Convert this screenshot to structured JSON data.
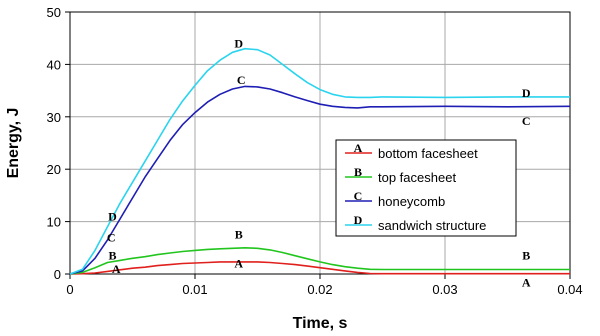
{
  "chart_data": {
    "type": "line",
    "xlabel": "Time, s",
    "ylabel": "Energy, J",
    "xlim": [
      0,
      0.04
    ],
    "ylim": [
      0,
      50
    ],
    "x_ticks": [
      "0",
      "0.01",
      "0.02",
      "0.03",
      "0.04"
    ],
    "y_ticks": [
      "0",
      "10",
      "20",
      "30",
      "40",
      "50"
    ],
    "grid": true,
    "legend_position": "center-right",
    "series": [
      {
        "name": "bottom facesheet",
        "marker": "A",
        "color": "#e0201c",
        "x": [
          0,
          0.001,
          0.002,
          0.003,
          0.004,
          0.005,
          0.006,
          0.007,
          0.008,
          0.009,
          0.01,
          0.011,
          0.012,
          0.013,
          0.014,
          0.015,
          0.016,
          0.017,
          0.018,
          0.019,
          0.02,
          0.021,
          0.022,
          0.023,
          0.024,
          0.025,
          0.03,
          0.035,
          0.04
        ],
        "y": [
          0,
          0.05,
          0.2,
          0.5,
          0.8,
          1.1,
          1.3,
          1.6,
          1.8,
          2.0,
          2.1,
          2.2,
          2.3,
          2.3,
          2.3,
          2.3,
          2.2,
          2.0,
          1.8,
          1.5,
          1.2,
          0.9,
          0.6,
          0.3,
          0.1,
          0.05,
          0.05,
          0.05,
          0.05
        ],
        "marker_points": [
          [
            0.0037,
            1.0
          ],
          [
            0.0135,
            2.0
          ],
          [
            0.0365,
            -1.6
          ]
        ]
      },
      {
        "name": "top facesheet",
        "marker": "B",
        "color": "#22c51e",
        "x": [
          0,
          0.001,
          0.002,
          0.003,
          0.004,
          0.005,
          0.006,
          0.007,
          0.008,
          0.009,
          0.01,
          0.011,
          0.012,
          0.013,
          0.014,
          0.015,
          0.016,
          0.017,
          0.018,
          0.019,
          0.02,
          0.021,
          0.022,
          0.023,
          0.024,
          0.025,
          0.03,
          0.035,
          0.04
        ],
        "y": [
          0,
          0.3,
          1.2,
          2.2,
          2.6,
          3.0,
          3.3,
          3.7,
          4.0,
          4.3,
          4.5,
          4.7,
          4.8,
          4.9,
          5.0,
          4.9,
          4.6,
          4.1,
          3.5,
          2.9,
          2.3,
          1.8,
          1.4,
          1.1,
          0.9,
          0.85,
          0.85,
          0.85,
          0.85
        ],
        "marker_points": [
          [
            0.0034,
            3.5
          ],
          [
            0.0135,
            7.5
          ],
          [
            0.0365,
            3.5
          ]
        ]
      },
      {
        "name": "honeycomb",
        "marker": "C",
        "color": "#1e1eb4",
        "x": [
          0,
          0.001,
          0.002,
          0.003,
          0.004,
          0.005,
          0.006,
          0.007,
          0.008,
          0.009,
          0.01,
          0.011,
          0.012,
          0.013,
          0.014,
          0.015,
          0.016,
          0.017,
          0.018,
          0.019,
          0.02,
          0.021,
          0.022,
          0.023,
          0.024,
          0.025,
          0.03,
          0.035,
          0.04
        ],
        "y": [
          0,
          0.6,
          3.0,
          6.5,
          10.5,
          14.5,
          18.5,
          22.0,
          25.5,
          28.5,
          30.8,
          32.8,
          34.3,
          35.3,
          35.8,
          35.7,
          35.3,
          34.6,
          33.8,
          33.1,
          32.4,
          32.0,
          31.8,
          31.7,
          31.9,
          31.9,
          32.0,
          31.9,
          32.0
        ],
        "marker_points": [
          [
            0.0033,
            7.0
          ],
          [
            0.0137,
            37.0
          ],
          [
            0.0365,
            29.2
          ]
        ]
      },
      {
        "name": "sandwich structure",
        "marker": "D",
        "color": "#2ad4ee",
        "x": [
          0,
          0.001,
          0.002,
          0.003,
          0.004,
          0.005,
          0.006,
          0.007,
          0.008,
          0.009,
          0.01,
          0.011,
          0.012,
          0.013,
          0.014,
          0.015,
          0.016,
          0.017,
          0.018,
          0.019,
          0.02,
          0.021,
          0.022,
          0.023,
          0.024,
          0.025,
          0.03,
          0.035,
          0.04
        ],
        "y": [
          0,
          0.9,
          4.5,
          9.0,
          13.5,
          17.5,
          21.5,
          25.5,
          29.5,
          33.0,
          36.0,
          38.8,
          40.8,
          42.3,
          43.0,
          42.8,
          41.8,
          40.0,
          38.2,
          36.5,
          35.2,
          34.3,
          33.8,
          33.7,
          33.7,
          33.8,
          33.7,
          33.8,
          33.8
        ],
        "marker_points": [
          [
            0.0034,
            11.0
          ],
          [
            0.0135,
            44.0
          ],
          [
            0.0365,
            34.5
          ]
        ]
      }
    ]
  }
}
